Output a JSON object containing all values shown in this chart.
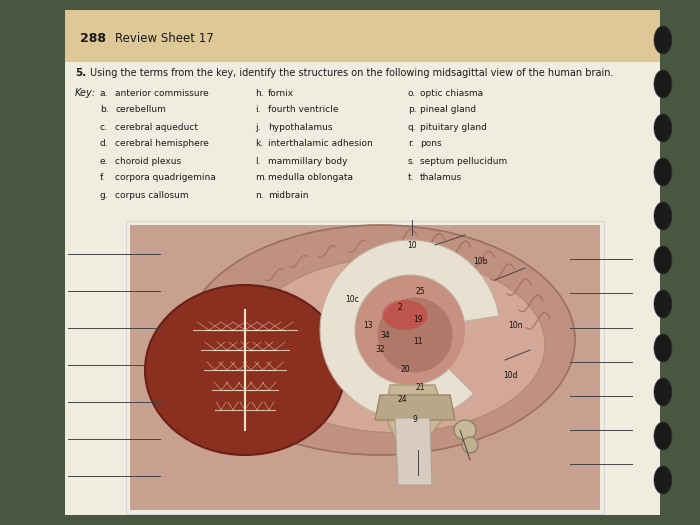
{
  "page_number": "288",
  "page_header": "Review Sheet 17",
  "question_number": "5.",
  "question_text": "Using the terms from the key, identify the structures on the following midsagittal view of the human brain.",
  "key_label": "Key:",
  "key_items_col1": [
    [
      "a.",
      "anterior commissure"
    ],
    [
      "b.",
      "cerebellum"
    ],
    [
      "c.",
      "cerebral aqueduct"
    ],
    [
      "d.",
      "cerebral hemisphere"
    ],
    [
      "e.",
      "choroid plexus"
    ],
    [
      "f.",
      "corpora quadrigemina"
    ],
    [
      "g.",
      "corpus callosum"
    ]
  ],
  "key_items_col2": [
    [
      "h.",
      "fornix"
    ],
    [
      "i.",
      "fourth ventricle"
    ],
    [
      "j.",
      "hypothalamus"
    ],
    [
      "k.",
      "interthalamic adhesion"
    ],
    [
      "l.",
      "mammillary body"
    ],
    [
      "m.",
      "medulla oblongata"
    ],
    [
      "n.",
      "midbrain"
    ]
  ],
  "key_items_col3": [
    [
      "o.",
      "optic chiasma"
    ],
    [
      "p.",
      "pineal gland"
    ],
    [
      "q.",
      "pituitary gland"
    ],
    [
      "r.",
      "pons"
    ],
    [
      "s.",
      "septum pellucidum"
    ],
    [
      "t.",
      "thalamus"
    ]
  ],
  "bg_outer": "#4a5740",
  "bg_page": "#f0ece0",
  "bg_header": "#dfc898",
  "bg_image": "#c8a090",
  "text_dark": "#1a1a1a",
  "text_gray": "#444444",
  "line_color": "#555555",
  "spiral_color": "#1a1a1a",
  "cereb_color": "#7a2a1a",
  "brain_outer": "#b87868",
  "brain_mid": "#c89080",
  "brain_light": "#d4a898",
  "stem_color": "#c0a888",
  "white_matter": "#e8ddd0"
}
